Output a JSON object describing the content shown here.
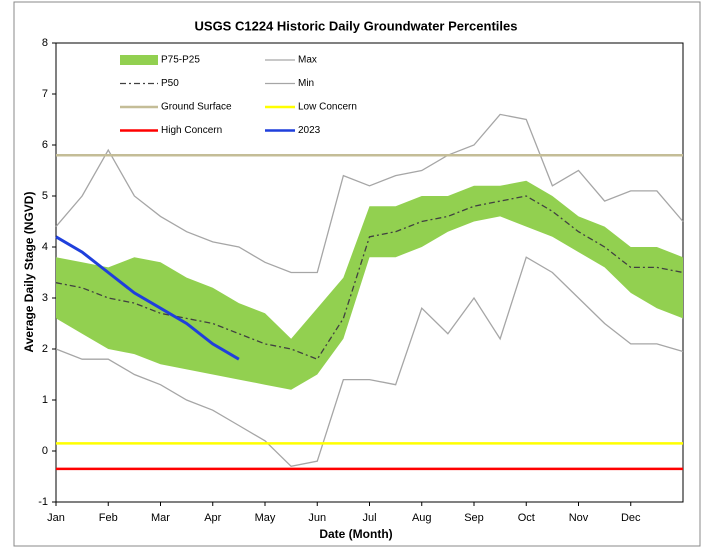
{
  "chart_data": {
    "type": "line",
    "title": "USGS C1224 Historic Daily Groundwater Percentiles",
    "x_label": "Date (Month)",
    "y_label": "Average Daily Stage (NGVD)",
    "categories": [
      "Jan",
      null,
      "Feb",
      null,
      "Mar",
      null,
      "Apr",
      null,
      "May",
      null,
      "Jun",
      null,
      "Jul",
      null,
      "Aug",
      null,
      "Sep",
      null,
      "Oct",
      null,
      "Nov",
      null,
      "Dec",
      null,
      null
    ],
    "ylim": [
      -1,
      8
    ],
    "yticks": [
      -1,
      0,
      1,
      2,
      3,
      4,
      5,
      6,
      7,
      8
    ],
    "series": [
      {
        "name": "P75-P25",
        "color": "#92d050",
        "kind": "band",
        "upper": [
          3.8,
          3.7,
          3.6,
          3.8,
          3.7,
          3.4,
          3.2,
          2.9,
          2.7,
          2.2,
          2.8,
          3.4,
          4.8,
          4.8,
          5.0,
          5.0,
          5.2,
          5.2,
          5.3,
          5.0,
          4.6,
          4.4,
          4.0,
          4.0,
          3.8
        ],
        "lower": [
          2.6,
          2.3,
          2.0,
          1.9,
          1.7,
          1.6,
          1.5,
          1.4,
          1.3,
          1.2,
          1.5,
          2.2,
          3.8,
          3.8,
          4.0,
          4.3,
          4.5,
          4.6,
          4.4,
          4.2,
          3.9,
          3.6,
          3.1,
          2.8,
          2.6
        ]
      },
      {
        "name": "Max",
        "color": "#a6a6a6",
        "kind": "line",
        "values": [
          4.4,
          5.0,
          5.9,
          5.0,
          4.6,
          4.3,
          4.1,
          4.0,
          3.7,
          3.5,
          3.5,
          5.4,
          5.2,
          5.4,
          5.5,
          5.8,
          6.0,
          6.6,
          6.5,
          5.2,
          5.5,
          4.9,
          5.1,
          5.1,
          4.5
        ]
      },
      {
        "name": "P50",
        "color": "#404040",
        "kind": "line",
        "dash": "dashdot",
        "values": [
          3.3,
          3.2,
          3.0,
          2.9,
          2.7,
          2.6,
          2.5,
          2.3,
          2.1,
          2.0,
          1.8,
          2.6,
          4.2,
          4.3,
          4.5,
          4.6,
          4.8,
          4.9,
          5.0,
          4.7,
          4.3,
          4.0,
          3.6,
          3.6,
          3.5
        ]
      },
      {
        "name": "Min",
        "color": "#a6a6a6",
        "kind": "line",
        "values": [
          2.0,
          1.8,
          1.8,
          1.5,
          1.3,
          1.0,
          0.8,
          0.5,
          0.2,
          -0.3,
          -0.2,
          1.4,
          1.4,
          1.3,
          2.8,
          2.3,
          3.0,
          2.2,
          3.8,
          3.5,
          3.0,
          2.5,
          2.1,
          2.1,
          1.95
        ]
      },
      {
        "name": "Ground Surface",
        "color": "#c4bd97",
        "kind": "reference",
        "value": 5.8
      },
      {
        "name": "Low Concern",
        "color": "#ffff00",
        "kind": "reference",
        "value": 0.15
      },
      {
        "name": "High Concern",
        "color": "#ff0000",
        "kind": "reference",
        "value": -0.35
      },
      {
        "name": "2023",
        "color": "#1f3fdc",
        "kind": "line",
        "values": [
          4.2,
          3.9,
          3.5,
          3.1,
          2.8,
          2.5,
          2.1,
          1.8,
          null,
          null,
          null,
          null,
          null,
          null,
          null,
          null,
          null,
          null,
          null,
          null,
          null,
          null,
          null,
          null,
          null
        ]
      }
    ]
  }
}
